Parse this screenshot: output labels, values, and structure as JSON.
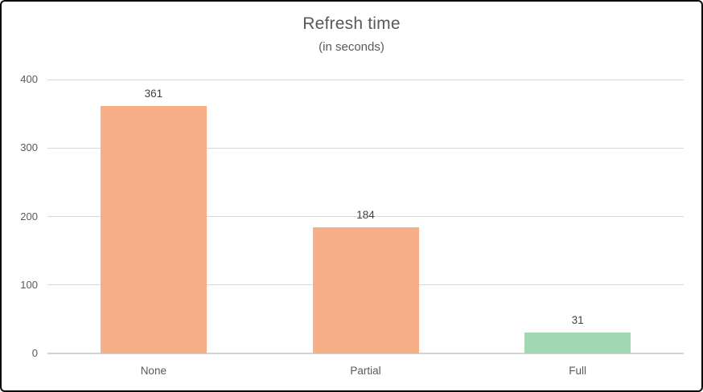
{
  "chart_data": {
    "type": "bar",
    "title": "Refresh time",
    "subtitle": "(in seconds)",
    "categories": [
      "None",
      "Partial",
      "Full"
    ],
    "values": [
      361,
      184,
      31
    ],
    "bar_colors": [
      "#F7AF88",
      "#F7AF88",
      "#A2D7B4"
    ],
    "xlabel": "",
    "ylabel": "",
    "ylim": [
      0,
      400
    ],
    "yticks": [
      0,
      100,
      200,
      300,
      400
    ],
    "grid": true,
    "legend": "none",
    "data_labels": true
  },
  "colors": {
    "title": "#595959",
    "axis_label": "#595959",
    "data_label": "#404040",
    "gridline": "#D9D9D9",
    "axis_line": "#D4D4D4",
    "background": "#FFFFFF",
    "border": "#0A0A0A"
  }
}
